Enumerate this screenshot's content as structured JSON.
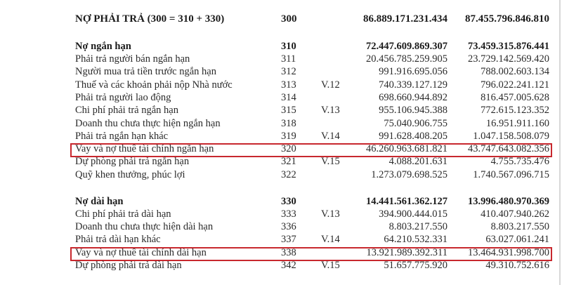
{
  "accent_color": "#c8282e",
  "rows": [
    {
      "label": "NỢ PHẢI TRẢ (300 = 310 + 330)",
      "code": "300",
      "note": "",
      "v1": "86.889.171.231.434",
      "v2": "87.455.796.846.810",
      "bold": true
    },
    {
      "label": "Nợ ngắn hạn",
      "code": "310",
      "note": "",
      "v1": "72.447.609.869.307",
      "v2": "73.459.315.876.441",
      "bold": true
    },
    {
      "label": "Phải trả người bán ngắn hạn",
      "code": "311",
      "note": "",
      "v1": "20.456.785.259.905",
      "v2": "23.729.142.569.420"
    },
    {
      "label": "Người mua trả tiền trước ngắn hạn",
      "code": "312",
      "note": "",
      "v1": "991.916.695.056",
      "v2": "788.002.603.134"
    },
    {
      "label": "Thuế và các khoản phải nộp Nhà nước",
      "code": "313",
      "note": "V.12",
      "v1": "740.339.127.129",
      "v2": "796.022.241.121"
    },
    {
      "label": "Phải trả người lao động",
      "code": "314",
      "note": "",
      "v1": "698.660.944.892",
      "v2": "816.457.005.628"
    },
    {
      "label": "Chi phí phải trả ngắn hạn",
      "code": "315",
      "note": "V.13",
      "v1": "955.106.945.388",
      "v2": "772.615.123.352"
    },
    {
      "label": "Doanh thu chưa thực hiện ngắn hạn",
      "code": "318",
      "note": "",
      "v1": "75.040.906.755",
      "v2": "16.951.911.160"
    },
    {
      "label": "Phải trả ngắn hạn khác",
      "code": "319",
      "note": "V.14",
      "v1": "991.628.408.205",
      "v2": "1.047.158.508.079"
    },
    {
      "label": "Vay và nợ thuê tài chính ngắn hạn",
      "code": "320",
      "note": "",
      "v1": "46.260.963.681.821",
      "v2": "43.747.643.082.356",
      "highlighted": true
    },
    {
      "label": "Dự phòng phải trả ngắn hạn",
      "code": "321",
      "note": "V.15",
      "v1": "4.088.201.631",
      "v2": "4.755.735.476"
    },
    {
      "label": "Quỹ khen thưởng, phúc lợi",
      "code": "322",
      "note": "",
      "v1": "1.273.079.698.525",
      "v2": "1.740.567.096.715"
    },
    {
      "label": "Nợ dài hạn",
      "code": "330",
      "note": "",
      "v1": "14.441.561.362.127",
      "v2": "13.996.480.970.369",
      "bold": true
    },
    {
      "label": "Chi phí phải trả dài hạn",
      "code": "333",
      "note": "V.13",
      "v1": "394.900.444.015",
      "v2": "410.407.940.262"
    },
    {
      "label": "Doanh thu chưa thực hiện dài hạn",
      "code": "336",
      "note": "",
      "v1": "8.803.217.550",
      "v2": "8.803.217.550"
    },
    {
      "label": "Phải trả dài hạn khác",
      "code": "337",
      "note": "V.14",
      "v1": "64.210.532.331",
      "v2": "63.027.061.241"
    },
    {
      "label": "Vay và nợ thuê tài chính dài hạn",
      "code": "338",
      "note": "",
      "v1": "13.921.989.392.311",
      "v2": "13.464.931.998.700",
      "highlighted": true
    },
    {
      "label": "Dự phòng phải trả dài hạn",
      "code": "342",
      "note": "V.15",
      "v1": "51.657.775.920",
      "v2": "49.310.752.616"
    }
  ]
}
